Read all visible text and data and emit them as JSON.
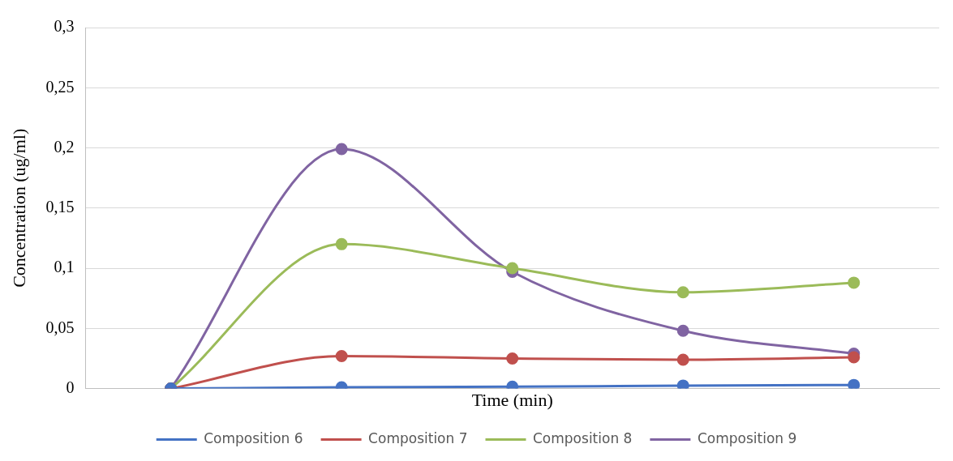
{
  "chart_data": {
    "type": "line",
    "xlabel": "Time (min)",
    "ylabel": "Concentration (ug/ml)",
    "categories": [
      null,
      null,
      null,
      null,
      null
    ],
    "tick_labels": "y",
    "ylim": [
      0,
      0.3
    ],
    "yticks": [
      {
        "value": 0,
        "label": "0"
      },
      {
        "value": 0.05,
        "label": "0,05"
      },
      {
        "value": 0.1,
        "label": "0,1"
      },
      {
        "value": 0.15,
        "label": "0,15"
      },
      {
        "value": 0.2,
        "label": "0,2"
      },
      {
        "value": 0.25,
        "label": "0,25"
      },
      {
        "value": 0.3,
        "label": "0,3"
      }
    ],
    "grid": "y",
    "legend": "bottom",
    "marker": "circle",
    "line_style": "solid",
    "series": [
      {
        "name": "Composition 6",
        "color": "#4472c4",
        "values": [
          0,
          0.001,
          0.0015,
          0.0025,
          0.003
        ]
      },
      {
        "name": "Composition 7",
        "color": "#c0504d",
        "values": [
          0,
          0.027,
          0.025,
          0.024,
          0.026
        ]
      },
      {
        "name": "Composition 8",
        "color": "#9bbb59",
        "values": [
          0,
          0.12,
          0.1,
          0.08,
          0.088
        ]
      },
      {
        "name": "Composition 9",
        "color": "#8064a2",
        "values": [
          0,
          0.199,
          0.097,
          0.048,
          0.029
        ]
      }
    ]
  }
}
